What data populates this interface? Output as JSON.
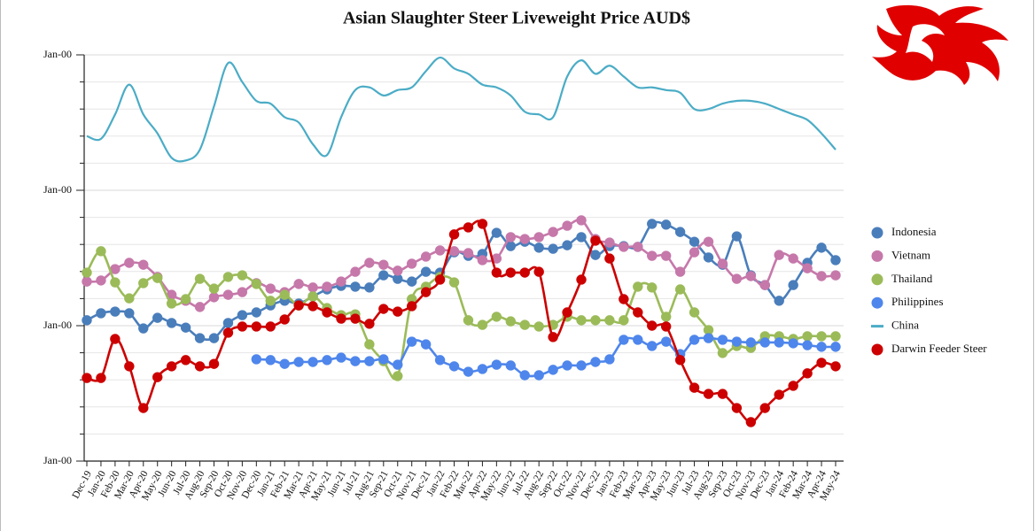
{
  "chart_data": {
    "type": "line",
    "title": "Asian Slaughter Steer Liveweight Price AUD$",
    "categories": [
      "Dec-19",
      "Jan-20",
      "Feb-20",
      "Mar-20",
      "Apr-20",
      "May-20",
      "Jun-20",
      "Jul-20",
      "Aug-20",
      "Sep-20",
      "Oct-20",
      "Nov-20",
      "Dec-20",
      "Jan-21",
      "Feb-21",
      "Mar-21",
      "Apr-21",
      "May-21",
      "Jun-21",
      "Jul-21",
      "Aug-21",
      "Sep-21",
      "Oct-21",
      "Nov-21",
      "Dec-21",
      "Jan-22",
      "Feb-22",
      "Mar-22",
      "Apr-22",
      "May-22",
      "Jun-22",
      "Jul-22",
      "Aug-22",
      "Sep-22",
      "Oct-22",
      "Nov-22",
      "Dec-22",
      "Jan-23",
      "Feb-23",
      "Mar-23",
      "Apr-23",
      "May-23",
      "Jun-23",
      "Jul-23",
      "Aug-23",
      "Sep-23",
      "Oct-23",
      "Nov-23",
      "Dec-23",
      "Jan-24",
      "Feb-24",
      "Mar-24",
      "Apr-24",
      "May-24"
    ],
    "series": [
      {
        "name": "Indonesia",
        "color": "#4a7ebb",
        "marker": "circle",
        "values": [
          5.2,
          5.46,
          5.52,
          5.46,
          4.9,
          5.29,
          5.1,
          4.93,
          4.54,
          4.54,
          5.1,
          5.39,
          5.49,
          5.75,
          5.92,
          5.82,
          6.08,
          6.34,
          6.47,
          6.44,
          6.41,
          6.86,
          6.73,
          6.63,
          6.99,
          6.96,
          7.71,
          7.58,
          7.65,
          8.43,
          7.94,
          8.1,
          7.88,
          7.84,
          7.97,
          8.27,
          7.61,
          7.94,
          7.94,
          7.91,
          8.76,
          8.73,
          8.46,
          8.1,
          7.52,
          7.25,
          8.3,
          6.86,
          6.5,
          5.92,
          6.5,
          7.32,
          7.88,
          7.42
        ]
      },
      {
        "name": "Vietnam",
        "color": "#c678aa",
        "marker": "circle",
        "values": [
          6.63,
          6.67,
          7.09,
          7.32,
          7.25,
          6.8,
          6.14,
          5.92,
          5.69,
          6.05,
          6.14,
          6.24,
          6.57,
          6.37,
          6.24,
          6.54,
          6.41,
          6.44,
          6.63,
          6.99,
          7.32,
          7.25,
          7.03,
          7.29,
          7.55,
          7.78,
          7.75,
          7.68,
          7.42,
          7.48,
          8.27,
          8.2,
          8.27,
          8.46,
          8.69,
          8.89,
          8.2,
          8.07,
          7.91,
          7.91,
          7.58,
          7.58,
          6.99,
          7.71,
          8.1,
          7.29,
          6.73,
          6.83,
          6.5,
          7.61,
          7.48,
          7.12,
          6.83,
          6.86
        ]
      },
      {
        "name": "Thailand",
        "color": "#9bbb59",
        "marker": "circle",
        "values": [
          6.96,
          7.75,
          6.6,
          6.01,
          6.57,
          6.76,
          5.82,
          5.98,
          6.73,
          6.37,
          6.8,
          6.86,
          6.54,
          5.92,
          6.14,
          5.75,
          6.08,
          5.65,
          5.39,
          5.42,
          4.31,
          3.69,
          3.14,
          5.98,
          6.44,
          6.8,
          6.6,
          5.2,
          5.03,
          5.33,
          5.16,
          5.03,
          4.97,
          5.03,
          5.33,
          5.2,
          5.2,
          5.2,
          5.2,
          6.44,
          6.41,
          5.33,
          6.34,
          5.49,
          4.84,
          3.99,
          4.25,
          4.18,
          4.61,
          4.61,
          4.51,
          4.61,
          4.61,
          4.61
        ]
      },
      {
        "name": "Philippines",
        "color": "#4f86ec",
        "marker": "circle",
        "values": [
          null,
          null,
          null,
          null,
          null,
          null,
          null,
          null,
          null,
          null,
          null,
          null,
          3.76,
          3.73,
          3.59,
          3.66,
          3.66,
          3.73,
          3.82,
          3.69,
          3.69,
          3.76,
          3.56,
          4.41,
          4.31,
          3.73,
          3.5,
          3.3,
          3.4,
          3.56,
          3.53,
          3.17,
          3.17,
          3.37,
          3.53,
          3.53,
          3.66,
          3.76,
          4.48,
          4.48,
          4.25,
          4.41,
          3.95,
          4.48,
          4.54,
          4.48,
          4.41,
          4.38,
          4.38,
          4.38,
          4.35,
          4.28,
          4.22,
          4.22
        ]
      },
      {
        "name": "China",
        "color": "#4bacc6",
        "marker": "none",
        "values": [
          12.0,
          11.9,
          12.8,
          13.9,
          12.8,
          12.1,
          11.2,
          11.1,
          11.5,
          13.1,
          14.7,
          14.0,
          13.3,
          13.2,
          12.7,
          12.5,
          11.7,
          11.3,
          12.7,
          13.7,
          13.8,
          13.5,
          13.7,
          13.8,
          14.4,
          14.9,
          14.5,
          14.3,
          13.9,
          13.8,
          13.5,
          12.9,
          12.8,
          12.7,
          14.2,
          14.8,
          14.3,
          14.6,
          14.2,
          13.8,
          13.8,
          13.7,
          13.6,
          13.0,
          13.0,
          13.2,
          13.3,
          13.3,
          13.2,
          13.0,
          12.8,
          12.6,
          12.1,
          11.5
        ]
      },
      {
        "name": "Darwin Feeder Steer",
        "color": "#cc0000",
        "marker": "circle",
        "values": [
          3.07,
          3.07,
          4.51,
          3.5,
          1.96,
          3.1,
          3.5,
          3.73,
          3.5,
          3.59,
          4.74,
          4.97,
          4.97,
          4.97,
          5.23,
          5.75,
          5.72,
          5.49,
          5.26,
          5.26,
          5.07,
          5.62,
          5.52,
          5.72,
          6.24,
          6.7,
          8.37,
          8.63,
          8.76,
          6.96,
          6.96,
          6.96,
          6.99,
          4.58,
          5.49,
          6.7,
          8.14,
          7.48,
          5.98,
          5.49,
          5.0,
          4.97,
          3.73,
          2.71,
          2.48,
          2.48,
          1.96,
          1.44,
          1.96,
          2.45,
          2.78,
          3.24,
          3.63,
          3.5
        ]
      }
    ],
    "ylim": [
      0,
      15
    ],
    "yticks": [
      {
        "value": 0,
        "label": "Jan-00"
      },
      {
        "value": 5,
        "label": "Jan-00"
      },
      {
        "value": 10,
        "label": "Jan-00"
      },
      {
        "value": 15,
        "label": "Jan-00"
      }
    ],
    "minor_yticks": [
      1,
      2,
      3,
      4,
      6,
      7,
      8,
      9,
      11,
      12,
      13,
      14
    ],
    "grid": true,
    "smooth": true,
    "legend_position": "right"
  }
}
